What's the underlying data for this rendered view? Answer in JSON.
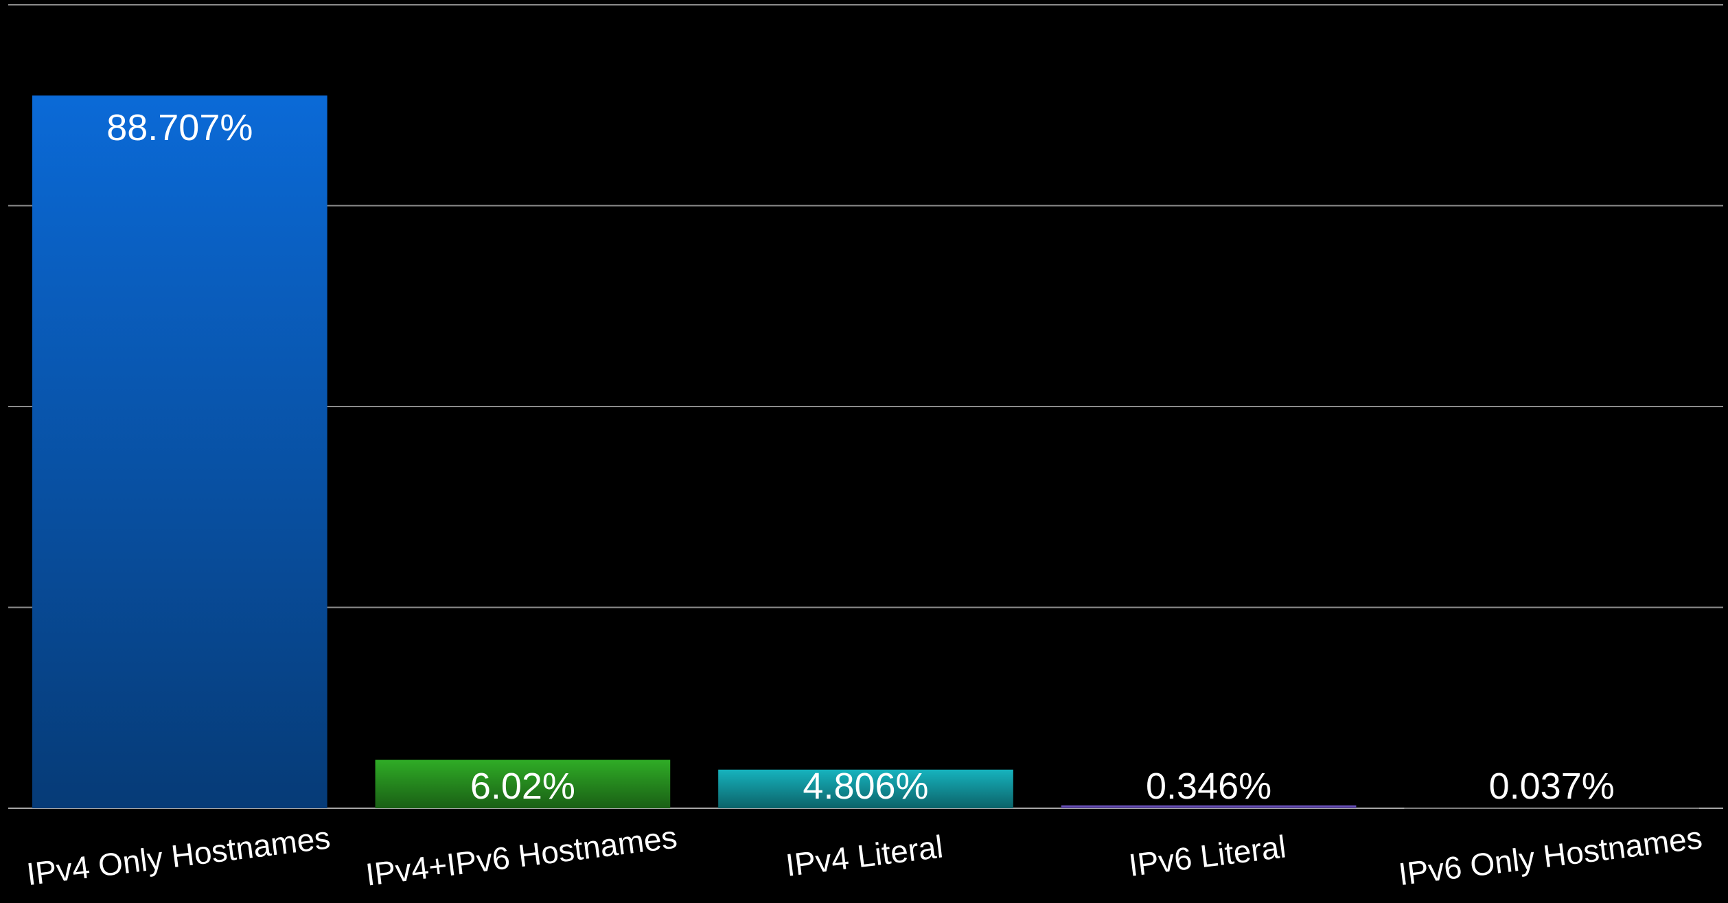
{
  "chart_data": {
    "type": "bar",
    "title": "",
    "xlabel": "",
    "ylabel": "",
    "ylim": [
      0,
      100
    ],
    "grid": true,
    "categories": [
      "IPv4 Only Hostnames",
      "IPv4+IPv6 Hostnames",
      "IPv4 Literal",
      "IPv6 Literal",
      "IPv6 Only Hostnames"
    ],
    "values": [
      88.707,
      6.02,
      4.806,
      0.346,
      0.037
    ],
    "value_labels": [
      "88.707%",
      "6.02%",
      "4.806%",
      "0.346%",
      "0.037%"
    ],
    "colors": [
      "#0a5fc0",
      "#2a9a22",
      "#14a0aa",
      "#6f55c2",
      "#555555"
    ],
    "background": "#000000"
  }
}
